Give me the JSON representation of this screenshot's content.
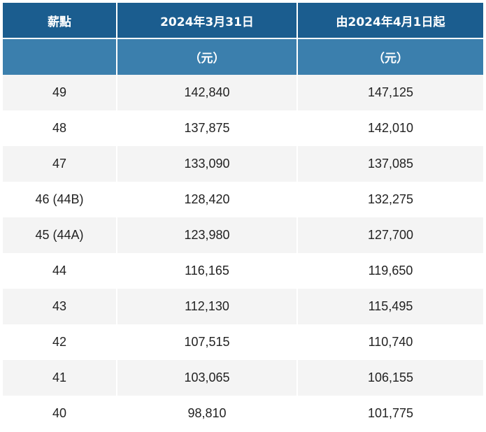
{
  "table": {
    "headers": [
      "薪點",
      "2024年3月31日",
      "由2024年4月1日起"
    ],
    "units": [
      "",
      "（元）",
      "（元）"
    ],
    "rows": [
      [
        "49",
        "142,840",
        "147,125"
      ],
      [
        "48",
        "137,875",
        "142,010"
      ],
      [
        "47",
        "133,090",
        "137,085"
      ],
      [
        "46 (44B)",
        "128,420",
        "132,275"
      ],
      [
        "45 (44A)",
        "123,980",
        "127,700"
      ],
      [
        "44",
        "116,165",
        "119,650"
      ],
      [
        "43",
        "112,130",
        "115,495"
      ],
      [
        "42",
        "107,515",
        "110,740"
      ],
      [
        "41",
        "103,065",
        "106,155"
      ],
      [
        "40",
        "98,810",
        "101,775"
      ]
    ]
  },
  "colors": {
    "header_bg": "#1b5d8f",
    "unit_bg": "#3b7fad",
    "stripe_bg": "#f4f4f4"
  }
}
